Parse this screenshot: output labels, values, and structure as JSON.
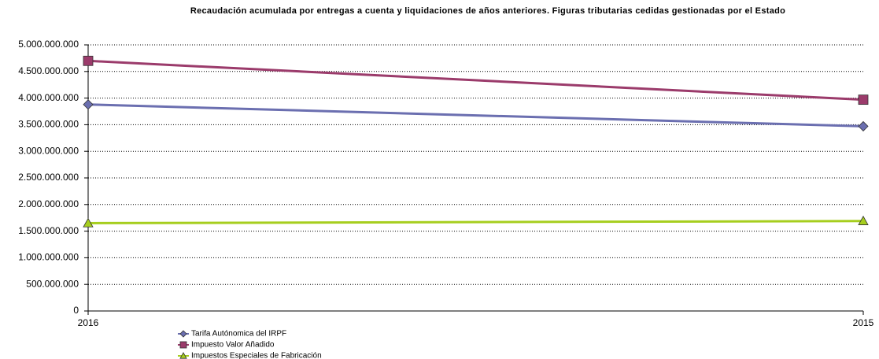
{
  "chart_data": {
    "type": "line",
    "title": "Recaudación acumulada por entregas a cuenta y liquidaciones de años anteriores. Figuras tributarias cedidas gestionadas por el Estado",
    "categories": [
      "2016",
      "2015"
    ],
    "series": [
      {
        "name": "Tarifa Autónomica del IRPF",
        "color": "#6b6fb0",
        "marker": "diamond",
        "values": [
          3880000000,
          3470000000
        ]
      },
      {
        "name": "Impuesto Valor Añadido",
        "color": "#9b3b6b",
        "marker": "square",
        "values": [
          4700000000,
          3970000000
        ]
      },
      {
        "name": "Impuestos Especiales de Fabricación",
        "color": "#a6ce1e",
        "marker": "triangle",
        "values": [
          1650000000,
          1690000000
        ]
      }
    ],
    "ylim": [
      0,
      5000000000
    ],
    "yticks": [
      0,
      {
        "value": 500000000,
        "label": "500.000.000"
      },
      {
        "value": 1000000000,
        "label": "1.000.000.000"
      },
      {
        "value": 1500000000,
        "label": "1.500.000.000"
      },
      {
        "value": 2000000000,
        "label": "2.000.000.000"
      },
      {
        "value": 2500000000,
        "label": "2.500.000.000"
      },
      {
        "value": 3000000000,
        "label": "3.000.000.000"
      },
      {
        "value": 3500000000,
        "label": "3.500.000.000"
      },
      {
        "value": 4000000000,
        "label": "4.000.000.000"
      },
      {
        "value": 4500000000,
        "label": "4.500.000.000"
      },
      {
        "value": 5000000000,
        "label": "5.000.000.000"
      }
    ],
    "grid": true
  }
}
